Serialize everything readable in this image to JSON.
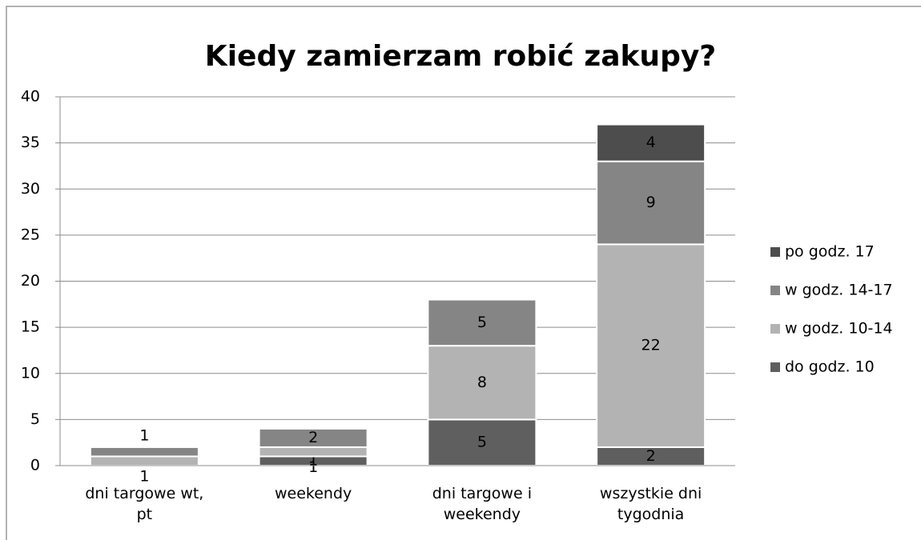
{
  "chart_data": {
    "type": "stacked_bar",
    "title": "Kiedy zamierzam robić zakupy?",
    "categories": [
      "dni targowe wt, pt",
      "weekendy",
      "dni targowe i weekendy",
      "wszystkie dni tygodnia"
    ],
    "series": [
      {
        "name": "do godz. 10",
        "color": "#5f5f5f",
        "values": [
          0,
          1,
          5,
          2
        ]
      },
      {
        "name": "w godz. 10-14",
        "color": "#b3b3b3",
        "values": [
          1,
          1,
          8,
          22
        ]
      },
      {
        "name": "w godz. 14-17",
        "color": "#858585",
        "values": [
          1,
          2,
          5,
          9
        ]
      },
      {
        "name": "po godz. 17",
        "color": "#4d4d4d",
        "values": [
          0,
          0,
          0,
          4
        ]
      }
    ],
    "ylim": [
      0,
      40
    ],
    "yticks": [
      0,
      5,
      10,
      15,
      20,
      25,
      30,
      35,
      40
    ],
    "grid": true,
    "legend": "right"
  }
}
